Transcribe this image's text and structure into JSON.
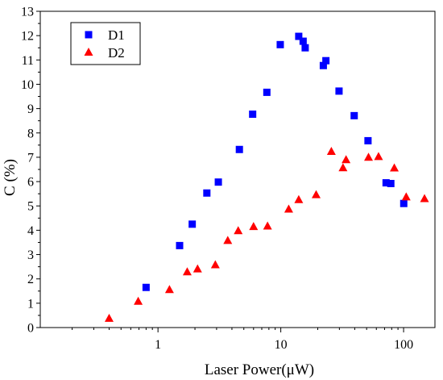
{
  "chart_data": {
    "type": "scatter",
    "title": "",
    "xlabel": "Laser Power(μW)",
    "ylabel": "C (%)",
    "x_scale": "log",
    "xlim": [
      0.11,
      180
    ],
    "ylim": [
      0,
      13
    ],
    "x_ticks": [
      1,
      10,
      100
    ],
    "x_tick_labels": [
      "1",
      "10",
      "100"
    ],
    "y_ticks": [
      0,
      1,
      2,
      3,
      4,
      5,
      6,
      7,
      8,
      9,
      10,
      11,
      12,
      13
    ],
    "y_tick_labels": [
      "0",
      "1",
      "2",
      "3",
      "4",
      "5",
      "6",
      "7",
      "8",
      "9",
      "10",
      "11",
      "12",
      "13"
    ],
    "grid": false,
    "legend_position": "top-left",
    "series": [
      {
        "name": "D1",
        "marker": "square",
        "color": "#0000ff",
        "points": [
          [
            0.8,
            1.65
          ],
          [
            1.5,
            3.37
          ],
          [
            1.9,
            4.25
          ],
          [
            2.5,
            5.53
          ],
          [
            3.1,
            5.98
          ],
          [
            4.6,
            7.32
          ],
          [
            5.9,
            8.77
          ],
          [
            7.7,
            9.67
          ],
          [
            9.9,
            11.63
          ],
          [
            14.0,
            11.97
          ],
          [
            15.2,
            11.77
          ],
          [
            15.8,
            11.5
          ],
          [
            22.2,
            10.77
          ],
          [
            23.3,
            10.97
          ],
          [
            29.8,
            9.72
          ],
          [
            39.6,
            8.71
          ],
          [
            51.3,
            7.68
          ],
          [
            72.0,
            5.95
          ],
          [
            78.7,
            5.92
          ],
          [
            100.3,
            5.1
          ]
        ]
      },
      {
        "name": "D2",
        "marker": "triangle",
        "color": "#ff0000",
        "points": [
          [
            0.4,
            0.37
          ],
          [
            0.69,
            1.07
          ],
          [
            1.24,
            1.55
          ],
          [
            1.73,
            2.28
          ],
          [
            2.1,
            2.4
          ],
          [
            2.93,
            2.57
          ],
          [
            3.7,
            3.57
          ],
          [
            4.5,
            3.97
          ],
          [
            6.0,
            4.14
          ],
          [
            7.8,
            4.16
          ],
          [
            11.6,
            4.86
          ],
          [
            14.0,
            5.25
          ],
          [
            19.4,
            5.45
          ],
          [
            25.8,
            7.23
          ],
          [
            32.1,
            6.56
          ],
          [
            34.0,
            6.89
          ],
          [
            51.8,
            6.99
          ],
          [
            62.5,
            7.02
          ],
          [
            84.0,
            6.55
          ],
          [
            105.0,
            5.36
          ],
          [
            148.0,
            5.29
          ]
        ]
      }
    ]
  }
}
